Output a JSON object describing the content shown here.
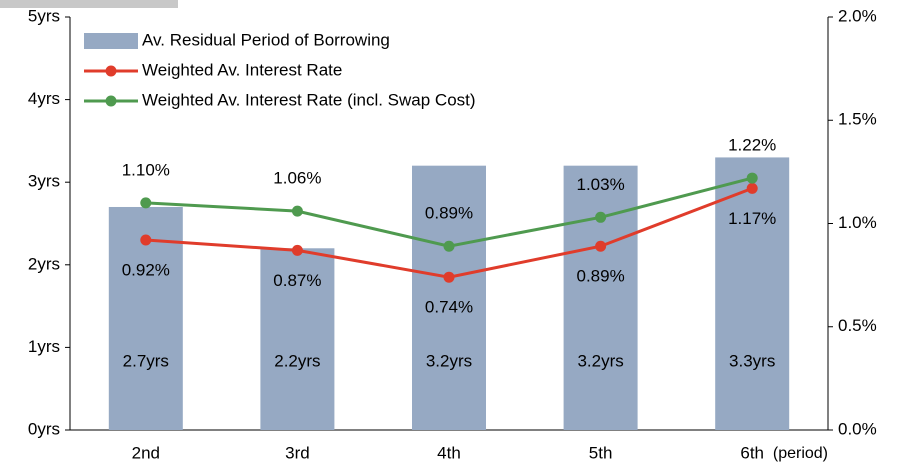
{
  "chart_data": {
    "type": "bar",
    "categories": [
      "2nd",
      "3rd",
      "4th",
      "5th",
      "6th"
    ],
    "xlabel": "(period)",
    "series": [
      {
        "name": "Av. Residual Period of Borrowing",
        "type": "bar",
        "color": "#96a9c3",
        "values": [
          2.7,
          2.2,
          3.2,
          3.2,
          3.3
        ],
        "value_labels": [
          "2.7yrs",
          "2.2yrs",
          "3.2yrs",
          "3.2yrs",
          "3.3yrs"
        ]
      },
      {
        "name": "Weighted Av. Interest Rate",
        "type": "line",
        "axis": "y2",
        "color": "#e03c2b",
        "values": [
          0.92,
          0.87,
          0.74,
          0.89,
          1.17
        ],
        "value_labels": [
          "0.92%",
          "0.87%",
          "0.74%",
          "0.89%",
          "1.17%"
        ]
      },
      {
        "name": "Weighted Av. Interest Rate (incl. Swap Cost)",
        "type": "line",
        "axis": "y2",
        "color": "#4f9a4f",
        "values": [
          1.1,
          1.06,
          0.89,
          1.03,
          1.22
        ],
        "value_labels": [
          "1.10%",
          "1.06%",
          "0.89%",
          "1.03%",
          "1.22%"
        ]
      }
    ],
    "ylim": [
      0,
      5
    ],
    "yticks": [
      {
        "value": 0,
        "label": "0yrs"
      },
      {
        "value": 1,
        "label": "1yrs"
      },
      {
        "value": 2,
        "label": "2yrs"
      },
      {
        "value": 3,
        "label": "3yrs"
      },
      {
        "value": 4,
        "label": "4yrs"
      },
      {
        "value": 5,
        "label": "5yrs"
      }
    ],
    "y2lim": [
      0,
      2
    ],
    "y2ticks": [
      {
        "value": 0,
        "label": "0.0%"
      },
      {
        "value": 0.5,
        "label": "0.5%"
      },
      {
        "value": 1,
        "label": "1.0%"
      },
      {
        "value": 1.5,
        "label": "1.5%"
      },
      {
        "value": 2,
        "label": "2.0%"
      }
    ],
    "legend": "top-left"
  }
}
